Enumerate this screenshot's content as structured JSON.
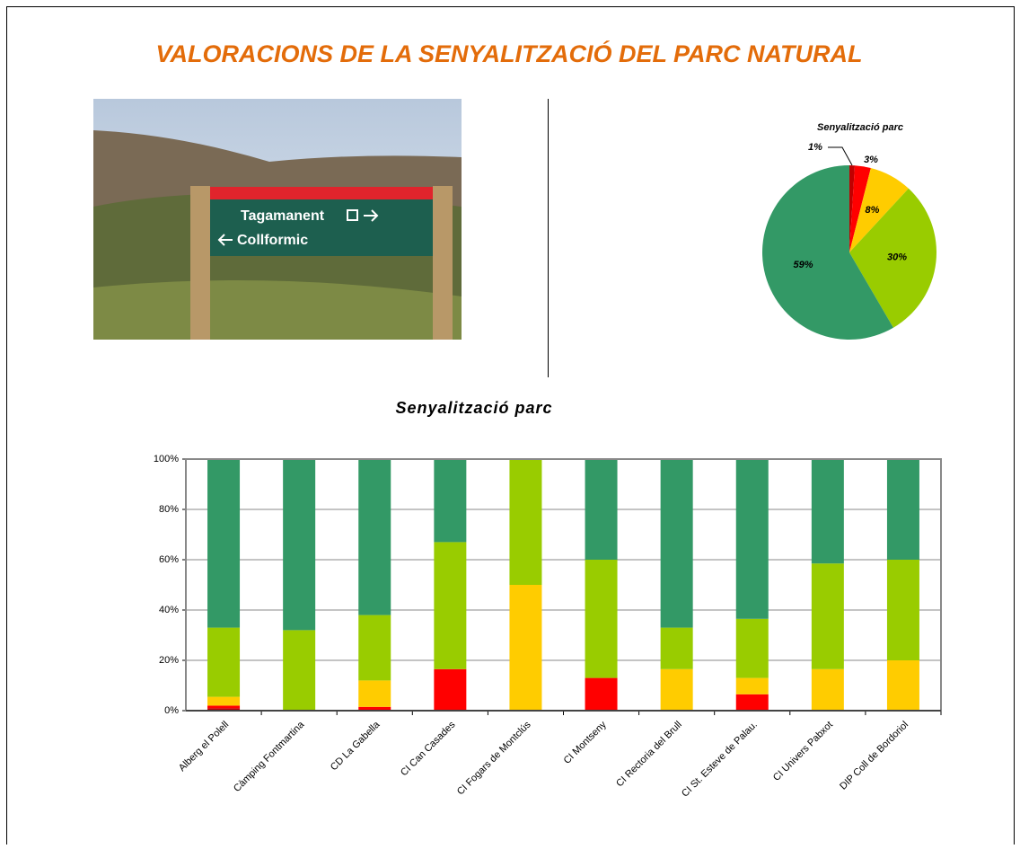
{
  "title": "VALORACIONS DE LA SENYALITZACIÓ DEL PARC NATURAL",
  "photo": {
    "sign_lines": [
      "Tagamanent",
      "Collformic"
    ]
  },
  "chart_data": [
    {
      "type": "pie",
      "title": "Senyalització parc",
      "values": [
        1,
        3,
        8,
        30,
        59
      ],
      "value_labels": [
        "1%",
        "3%",
        "8%",
        "30%",
        "59%"
      ],
      "colors": [
        "#c00000",
        "#ff0000",
        "#ffcc00",
        "#99cc00",
        "#339966"
      ]
    },
    {
      "type": "stacked_bar",
      "title": "Senyalització parc",
      "categories": [
        "Alberg el Polell",
        "Càmping Fontmartina",
        "CD La Gabella",
        "CI Can Casades",
        "CI Fogars de Montclús",
        "CI Montseny",
        "CI Rectoria del Brull",
        "CI St. Esteve de Palau.",
        "CI Univers Pabxot",
        "DIP Coll de Bordoriol"
      ],
      "series": [
        {
          "color": "#c00000",
          "values": [
            1,
            0,
            0,
            0,
            0,
            0,
            0,
            0,
            0,
            0
          ]
        },
        {
          "color": "#ff0000",
          "values": [
            1,
            0,
            1.5,
            16.5,
            0,
            13,
            0,
            6.5,
            0,
            0
          ]
        },
        {
          "color": "#ffcc00",
          "values": [
            3.5,
            0,
            10.5,
            0,
            50,
            0,
            16.5,
            6.5,
            16.5,
            20
          ]
        },
        {
          "color": "#99cc00",
          "values": [
            27.5,
            32,
            26,
            50.5,
            50,
            47,
            16.5,
            23.5,
            42,
            40
          ]
        },
        {
          "color": "#339966",
          "values": [
            67,
            68,
            62,
            33,
            0,
            40,
            67,
            63.5,
            41.5,
            40
          ]
        }
      ],
      "ylim": [
        0,
        100
      ],
      "yticks": [
        {
          "value": 0,
          "label": "0%"
        },
        {
          "value": 20,
          "label": "20%"
        },
        {
          "value": 40,
          "label": "40%"
        },
        {
          "value": 60,
          "label": "60%"
        },
        {
          "value": 80,
          "label": "80%"
        },
        {
          "value": 100,
          "label": "100%"
        }
      ],
      "grid": true
    }
  ]
}
